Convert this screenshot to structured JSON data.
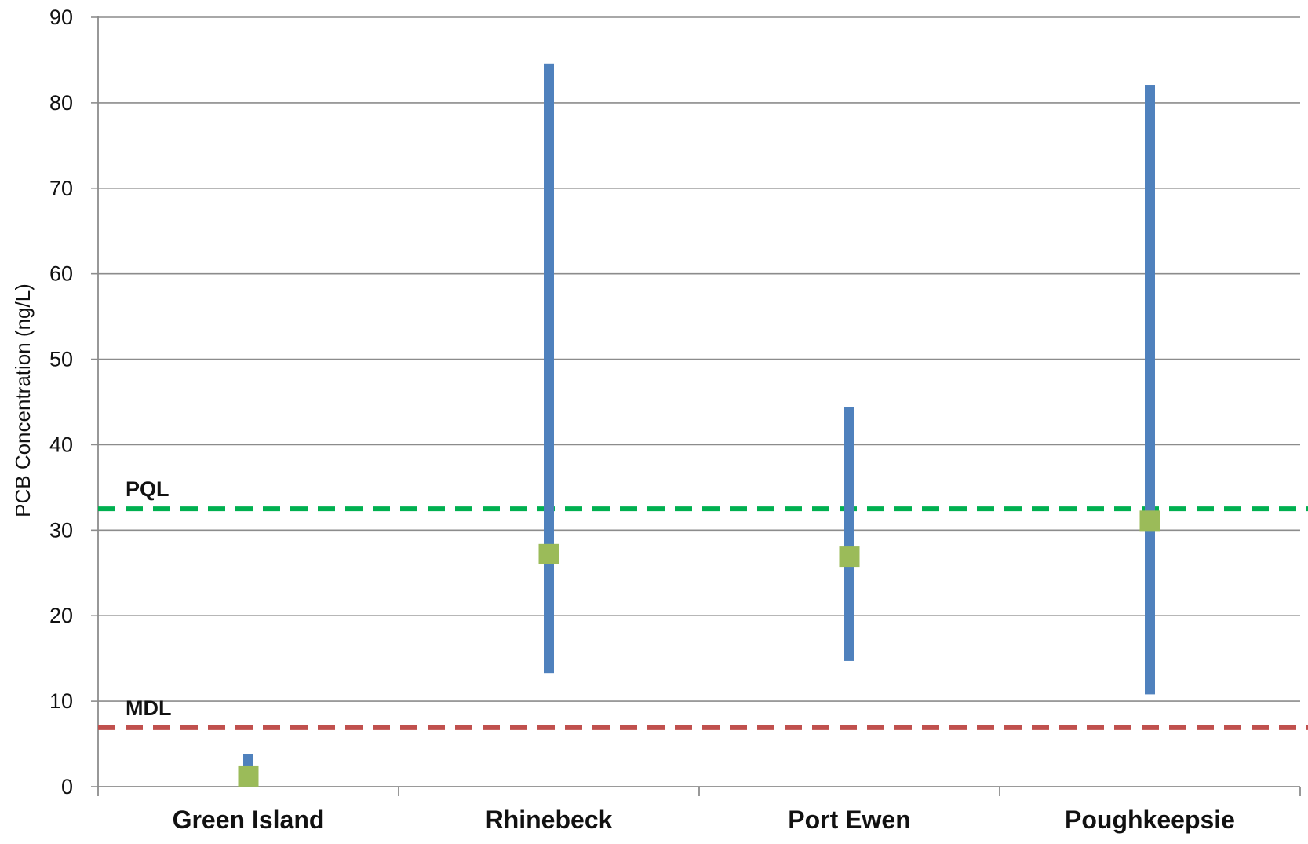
{
  "chart_data": {
    "type": "range",
    "title": "",
    "xlabel": "",
    "ylabel": "PCB Concentration (ng/L)",
    "ylim": [
      0,
      90
    ],
    "yticks": [
      0,
      10,
      20,
      30,
      40,
      50,
      60,
      70,
      80,
      90
    ],
    "grid": true,
    "legend": "none",
    "categories": [
      "Green Island",
      "Rhinebeck",
      "Port Ewen",
      "Poughkeepsie"
    ],
    "ranges": [
      {
        "category": "Green Island",
        "min": 0,
        "max": 3.8,
        "center": 1.2
      },
      {
        "category": "Rhinebeck",
        "min": 13.3,
        "max": 84.6,
        "center": 27.2
      },
      {
        "category": "Port Ewen",
        "min": 14.7,
        "max": 44.4,
        "center": 26.9
      },
      {
        "category": "Poughkeepsie",
        "min": 10.8,
        "max": 82.1,
        "center": 31.1
      }
    ],
    "reference_lines": [
      {
        "label": "PQL",
        "value": 32.5,
        "color": "#00b050",
        "style": "dashed"
      },
      {
        "label": "MDL",
        "value": 6.9,
        "color": "#c0504d",
        "style": "dashed"
      }
    ],
    "colors": {
      "range_bar": "#4f81bd",
      "center_marker": "#9bbb59",
      "gridline": "#8c8c8c",
      "axis": "#8c8c8c"
    }
  }
}
